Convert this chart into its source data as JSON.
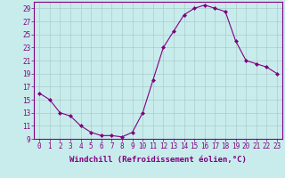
{
  "x": [
    0,
    1,
    2,
    3,
    4,
    5,
    6,
    7,
    8,
    9,
    10,
    11,
    12,
    13,
    14,
    15,
    16,
    17,
    18,
    19,
    20,
    21,
    22,
    23
  ],
  "y": [
    16,
    15,
    13,
    12.5,
    11,
    10,
    9.5,
    9.5,
    9.3,
    10,
    13,
    18,
    23,
    25.5,
    28,
    29,
    29.5,
    29,
    28.5,
    24,
    21,
    20.5,
    20,
    19
  ],
  "line_color": "#800080",
  "marker": "D",
  "marker_size": 2.0,
  "bg_color": "#c8ecec",
  "grid_color": "#aacccc",
  "xlabel": "Windchill (Refroidissement éolien,°C)",
  "ylim": [
    9,
    30
  ],
  "xlim": [
    -0.5,
    23.5
  ],
  "yticks": [
    9,
    11,
    13,
    15,
    17,
    19,
    21,
    23,
    25,
    27,
    29
  ],
  "xticks": [
    0,
    1,
    2,
    3,
    4,
    5,
    6,
    7,
    8,
    9,
    10,
    11,
    12,
    13,
    14,
    15,
    16,
    17,
    18,
    19,
    20,
    21,
    22,
    23
  ],
  "font_color": "#800080",
  "tick_fontsize": 5.5,
  "label_fontsize": 6.5
}
